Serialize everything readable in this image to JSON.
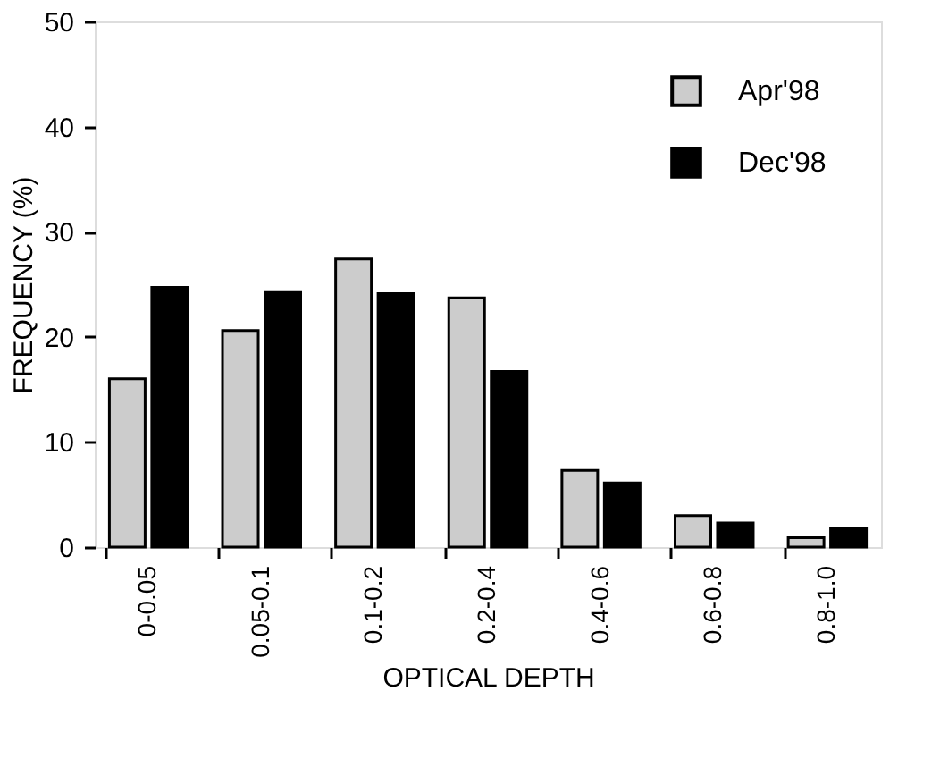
{
  "chart_data": {
    "type": "bar",
    "xlabel": "OPTICAL DEPTH",
    "ylabel": "FREQUENCY (%)",
    "categories": [
      "0-0.05",
      "0.05-0.1",
      "0.1-0.2",
      "0.2-0.4",
      "0.4-0.6",
      "0.6-0.8",
      "0.8-1.0"
    ],
    "series": [
      {
        "name": "Apr'98",
        "color": "#cccccc",
        "values": [
          16.0,
          20.6,
          27.4,
          23.7,
          7.3,
          3.0,
          0.9
        ]
      },
      {
        "name": "Dec'98",
        "color": "#000000",
        "values": [
          24.7,
          24.3,
          24.1,
          16.7,
          6.1,
          2.3,
          1.8
        ]
      }
    ],
    "ylim": [
      0,
      50
    ],
    "yticks": [
      0,
      10,
      20,
      30,
      40,
      50
    ],
    "grid": false,
    "legend": "top right"
  }
}
